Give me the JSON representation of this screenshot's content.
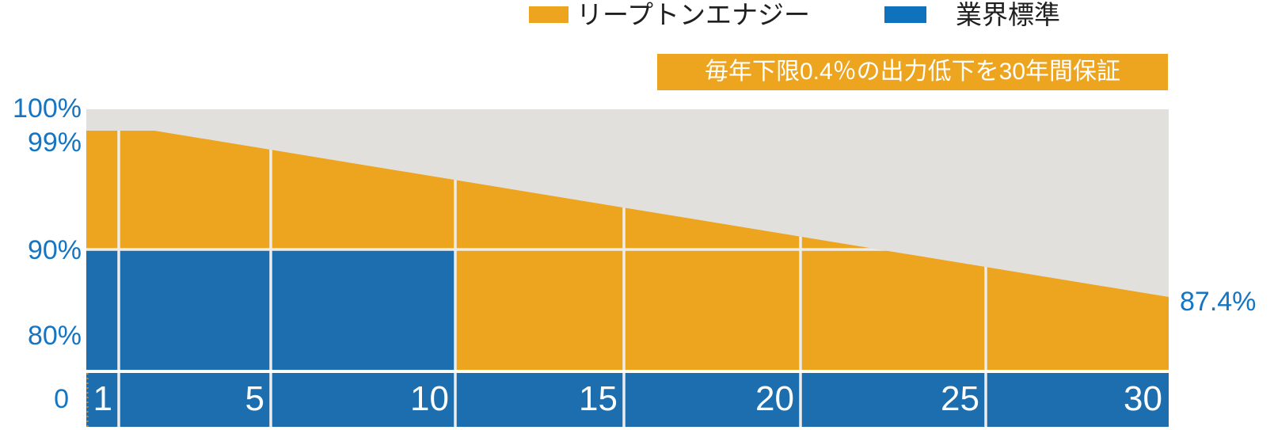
{
  "legend": {
    "items": [
      {
        "label": "リープトンエナジー",
        "color": "#EDA41E"
      },
      {
        "label": "業界標準",
        "color": "#0E72BC"
      }
    ]
  },
  "callout": {
    "text": "毎年下限0.4％の出力低下を30年間保証",
    "bg": "#EDA41E",
    "text_color": "#FFFFFF"
  },
  "y_axis": {
    "labels": [
      "100%",
      "99%",
      "90%",
      "80%",
      "0"
    ],
    "color": "#1375C3"
  },
  "x_axis": {
    "labels": [
      "1",
      "5",
      "10",
      "15",
      "20",
      "25",
      "30"
    ],
    "color": "#FFFFFF"
  },
  "end_label": {
    "text": "87.4%",
    "color": "#1375C3"
  },
  "chart_data": {
    "type": "area",
    "x": [
      1,
      5,
      10,
      15,
      20,
      25,
      30
    ],
    "x_unit": "years",
    "series": [
      {
        "name": "リープトンエナジー",
        "color": "#EDA41E",
        "values": [
          99,
          97.4,
          95.4,
          93.4,
          91.4,
          89.4,
          87.4
        ]
      },
      {
        "name": "業界標準",
        "color": "#1D6EAE",
        "values": [
          90,
          90,
          90,
          null,
          null,
          null,
          null
        ]
      }
    ],
    "ylim": [
      0,
      100
    ],
    "y_ticks_shown": [
      100,
      99,
      90,
      80,
      0
    ],
    "end_value": 87.4,
    "degradation_rate_per_year_pct": 0.4,
    "warranty_years": 30,
    "annotation": "毎年下限0.4％の出力低下を30年間保証",
    "plot_bg": "#E1E0DD",
    "gridline_color": "#EDECEA",
    "axis_band_color": "#1D6EAE",
    "legend_position": "top"
  }
}
